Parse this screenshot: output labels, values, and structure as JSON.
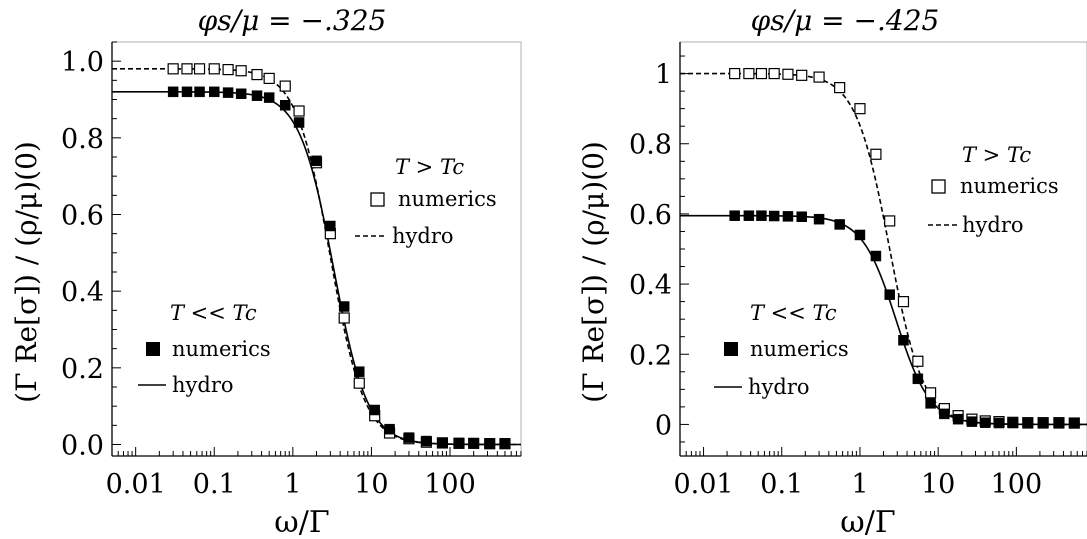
{
  "panels": [
    {
      "id": "left",
      "title": "φs/μ = −.325",
      "x_scale": "log",
      "xlim": [
        0.005,
        800
      ],
      "ylim": [
        -0.03,
        1.05
      ],
      "x_ticks": [
        {
          "value": 0.01,
          "label": "0.01"
        },
        {
          "value": 0.1,
          "label": "0.1"
        },
        {
          "value": 1,
          "label": "1"
        },
        {
          "value": 10,
          "label": "10"
        },
        {
          "value": 100,
          "label": "100"
        }
      ],
      "y_ticks": [
        {
          "value": 0.0,
          "label": "0.0"
        },
        {
          "value": 0.2,
          "label": "0.2"
        },
        {
          "value": 0.4,
          "label": "0.4"
        },
        {
          "value": 0.6,
          "label": "0.6"
        },
        {
          "value": 0.8,
          "label": "0.8"
        },
        {
          "value": 1.0,
          "label": "1.0"
        }
      ],
      "xlabel": "ω/Γ",
      "ylabel": "(Γ Re[σ])  /  (ρ/μ)(0)",
      "legend_hot": {
        "header": "T > Tc",
        "numerics": "numerics",
        "hydro": "hydro"
      },
      "legend_cold": {
        "header": "T << Tc",
        "numerics": "numerics",
        "hydro": "hydro"
      },
      "hydro_hot": {
        "plateau": 0.98,
        "w0": 3.0
      },
      "hydro_cold": {
        "plateau": 0.92,
        "w0": 3.3
      },
      "numerics_hot": {
        "x": [
          0.03,
          0.045,
          0.065,
          0.1,
          0.15,
          0.22,
          0.35,
          0.5,
          0.8,
          1.2,
          2.0,
          3.0,
          4.5,
          7.0,
          11,
          17,
          30,
          50,
          80,
          130,
          200,
          320,
          500
        ],
        "y": [
          0.98,
          0.98,
          0.98,
          0.98,
          0.978,
          0.975,
          0.965,
          0.955,
          0.935,
          0.87,
          0.735,
          0.55,
          0.33,
          0.16,
          0.075,
          0.03,
          0.015,
          0.006,
          0.004,
          0.003,
          0.003,
          0.002,
          0.002
        ]
      },
      "numerics_cold": {
        "x": [
          0.03,
          0.045,
          0.065,
          0.1,
          0.15,
          0.22,
          0.35,
          0.5,
          0.8,
          1.2,
          2.0,
          3.0,
          4.5,
          7.0,
          11,
          17,
          30,
          50,
          80,
          130,
          200,
          320,
          500
        ],
        "y": [
          0.92,
          0.92,
          0.92,
          0.92,
          0.918,
          0.915,
          0.91,
          0.905,
          0.885,
          0.84,
          0.74,
          0.57,
          0.36,
          0.19,
          0.09,
          0.04,
          0.018,
          0.009,
          0.005,
          0.004,
          0.003,
          0.003,
          0.003
        ]
      }
    },
    {
      "id": "right",
      "title": "φs/μ = −.425",
      "x_scale": "log",
      "xlim": [
        0.005,
        800
      ],
      "ylim": [
        -0.09,
        1.09
      ],
      "x_ticks": [
        {
          "value": 0.01,
          "label": "0.01"
        },
        {
          "value": 0.1,
          "label": "0.1"
        },
        {
          "value": 1,
          "label": "1"
        },
        {
          "value": 10,
          "label": "10"
        },
        {
          "value": 100,
          "label": "100"
        }
      ],
      "y_ticks": [
        {
          "value": 0,
          "label": "0"
        },
        {
          "value": 0.2,
          "label": "0.2"
        },
        {
          "value": 0.4,
          "label": "0.4"
        },
        {
          "value": 0.6,
          "label": "0.6"
        },
        {
          "value": 0.8,
          "label": "0.8"
        },
        {
          "value": 1.0,
          "label": "1"
        }
      ],
      "xlabel": "ω/Γ",
      "ylabel": "(Γ Re[σ])  /  (ρ/μ)(0)",
      "legend_hot": {
        "header": "T > Tc",
        "numerics": "numerics",
        "hydro": "hydro"
      },
      "legend_cold": {
        "header": "T << Tc",
        "numerics": "numerics",
        "hydro": "hydro"
      },
      "hydro_hot": {
        "plateau": 1.0,
        "w0": 2.4
      },
      "hydro_cold": {
        "plateau": 0.595,
        "w0": 2.9
      },
      "numerics_hot": {
        "x": [
          0.025,
          0.038,
          0.055,
          0.08,
          0.12,
          0.18,
          0.3,
          0.55,
          1.0,
          1.6,
          2.4,
          3.6,
          5.5,
          8.0,
          12,
          18,
          27,
          40,
          60,
          90,
          140,
          220,
          350,
          550
        ],
        "y": [
          1.0,
          1.0,
          1.0,
          1.0,
          0.998,
          0.995,
          0.99,
          0.96,
          0.9,
          0.77,
          0.58,
          0.35,
          0.18,
          0.09,
          0.045,
          0.025,
          0.015,
          0.01,
          0.008,
          0.006,
          0.005,
          0.005,
          0.005,
          0.004
        ]
      },
      "numerics_cold": {
        "x": [
          0.025,
          0.038,
          0.055,
          0.08,
          0.12,
          0.18,
          0.3,
          0.55,
          1.0,
          1.6,
          2.4,
          3.6,
          5.5,
          8.0,
          12,
          18,
          27,
          40,
          60,
          90,
          140,
          220,
          350,
          550
        ],
        "y": [
          0.595,
          0.595,
          0.595,
          0.594,
          0.593,
          0.592,
          0.585,
          0.57,
          0.54,
          0.48,
          0.37,
          0.24,
          0.13,
          0.06,
          0.03,
          0.015,
          0.008,
          0.005,
          0.004,
          0.004,
          0.003,
          0.003,
          0.003,
          0.003
        ]
      }
    }
  ],
  "colors": {
    "axes": "#000000",
    "background": "#ffffff",
    "frame": "#b0b0b0"
  },
  "chart_data": [
    {
      "type": "line",
      "title": "φs/μ = −.325",
      "xlabel": "ω/Γ",
      "ylabel": "(Γ Re[σ])  /  (ρ/μ)(0)",
      "x_scale": "log",
      "xlim": [
        0.005,
        800
      ],
      "ylim": [
        -0.03,
        1.05
      ],
      "grid": false,
      "legend": [
        "T > Tc: numerics",
        "T > Tc: hydro",
        "T << Tc: numerics",
        "T << Tc: hydro"
      ]
    },
    {
      "type": "line",
      "title": "φs/μ = −.425",
      "xlabel": "ω/Γ",
      "ylabel": "(Γ Re[σ])  /  (ρ/μ)(0)",
      "x_scale": "log",
      "xlim": [
        0.005,
        800
      ],
      "ylim": [
        -0.09,
        1.09
      ],
      "grid": false,
      "legend": [
        "T > Tc: numerics",
        "T > Tc: hydro",
        "T << Tc: numerics",
        "T << Tc: hydro"
      ]
    }
  ]
}
